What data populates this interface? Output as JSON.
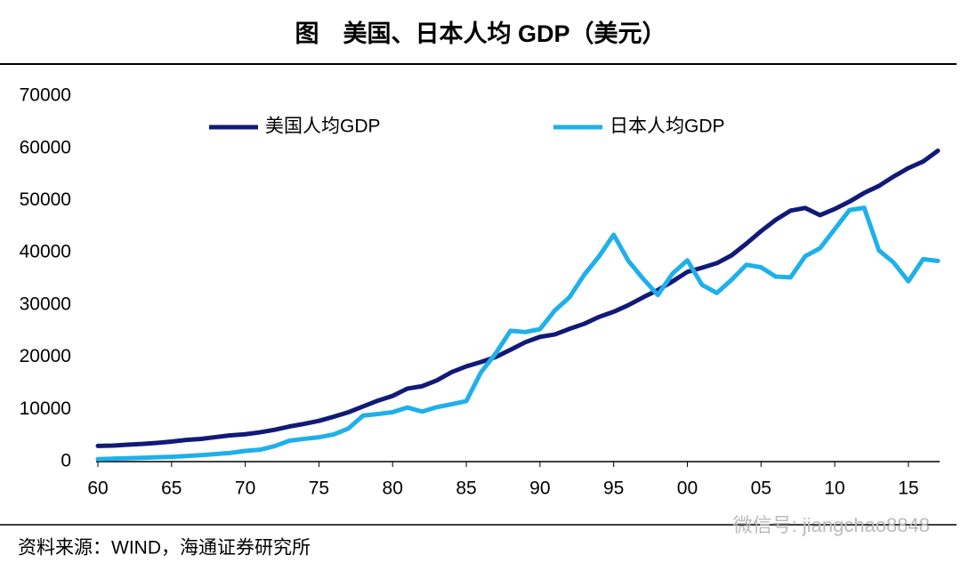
{
  "chart_data": {
    "type": "line",
    "title": "图　美国、日本人均 GDP（美元）",
    "source": "资料来源：WIND，海通证券研究所",
    "watermark": "微信号: jiangchao8848",
    "x": [
      1960,
      1961,
      1962,
      1963,
      1964,
      1965,
      1966,
      1967,
      1968,
      1969,
      1970,
      1971,
      1972,
      1973,
      1974,
      1975,
      1976,
      1977,
      1978,
      1979,
      1980,
      1981,
      1982,
      1983,
      1984,
      1985,
      1986,
      1987,
      1988,
      1989,
      1990,
      1991,
      1992,
      1993,
      1994,
      1995,
      1996,
      1997,
      1998,
      1999,
      2000,
      2001,
      2002,
      2003,
      2004,
      2005,
      2006,
      2007,
      2008,
      2009,
      2010,
      2011,
      2012,
      2013,
      2014,
      2015,
      2016,
      2017
    ],
    "series": [
      {
        "name": "美国人均GDP",
        "color": "#111a78",
        "values": [
          3007,
          3067,
          3244,
          3375,
          3574,
          3828,
          4146,
          4336,
          4696,
          5032,
          5234,
          5609,
          6094,
          6726,
          7226,
          7801,
          8592,
          9453,
          10565,
          11674,
          12575,
          13976,
          14434,
          15544,
          17121,
          18237,
          19071,
          20039,
          21417,
          22857,
          23889,
          24342,
          25419,
          26387,
          27695,
          28691,
          29968,
          31459,
          32854,
          34516,
          36330,
          37134,
          37998,
          39490,
          41725,
          44123,
          46302,
          48050,
          48570,
          47195,
          48374,
          49790,
          51450,
          52787,
          54599,
          56207,
          57467,
          59532
        ]
      },
      {
        "name": "日本人均GDP",
        "color": "#1eb0ea",
        "values": [
          479,
          564,
          633,
          718,
          835,
          919,
          1058,
          1229,
          1451,
          1669,
          2037,
          2272,
          2967,
          3997,
          4354,
          4659,
          5198,
          6335,
          8821,
          9105,
          9463,
          10361,
          9578,
          10425,
          10984,
          11585,
          17112,
          20745,
          25052,
          24813,
          25359,
          28925,
          31465,
          35766,
          39269,
          43440,
          38437,
          35022,
          31903,
          36027,
          38532,
          33846,
          32289,
          34808,
          37689,
          37218,
          35434,
          35275,
          39339,
          40855,
          44508,
          48168,
          48603,
          40454,
          38109,
          34524,
          38761,
          38430
        ]
      }
    ],
    "xlim": [
      1960,
      2017
    ],
    "xticks": [
      {
        "value": 1960,
        "label": "60"
      },
      {
        "value": 1965,
        "label": "65"
      },
      {
        "value": 1970,
        "label": "70"
      },
      {
        "value": 1975,
        "label": "75"
      },
      {
        "value": 1980,
        "label": "80"
      },
      {
        "value": 1985,
        "label": "85"
      },
      {
        "value": 1990,
        "label": "90"
      },
      {
        "value": 1995,
        "label": "95"
      },
      {
        "value": 2000,
        "label": "00"
      },
      {
        "value": 2005,
        "label": "05"
      },
      {
        "value": 2010,
        "label": "10"
      },
      {
        "value": 2015,
        "label": "15"
      }
    ],
    "ylim": [
      0,
      70000
    ],
    "yticks": [
      0,
      10000,
      20000,
      30000,
      40000,
      50000,
      60000,
      70000
    ],
    "legend": "top"
  }
}
